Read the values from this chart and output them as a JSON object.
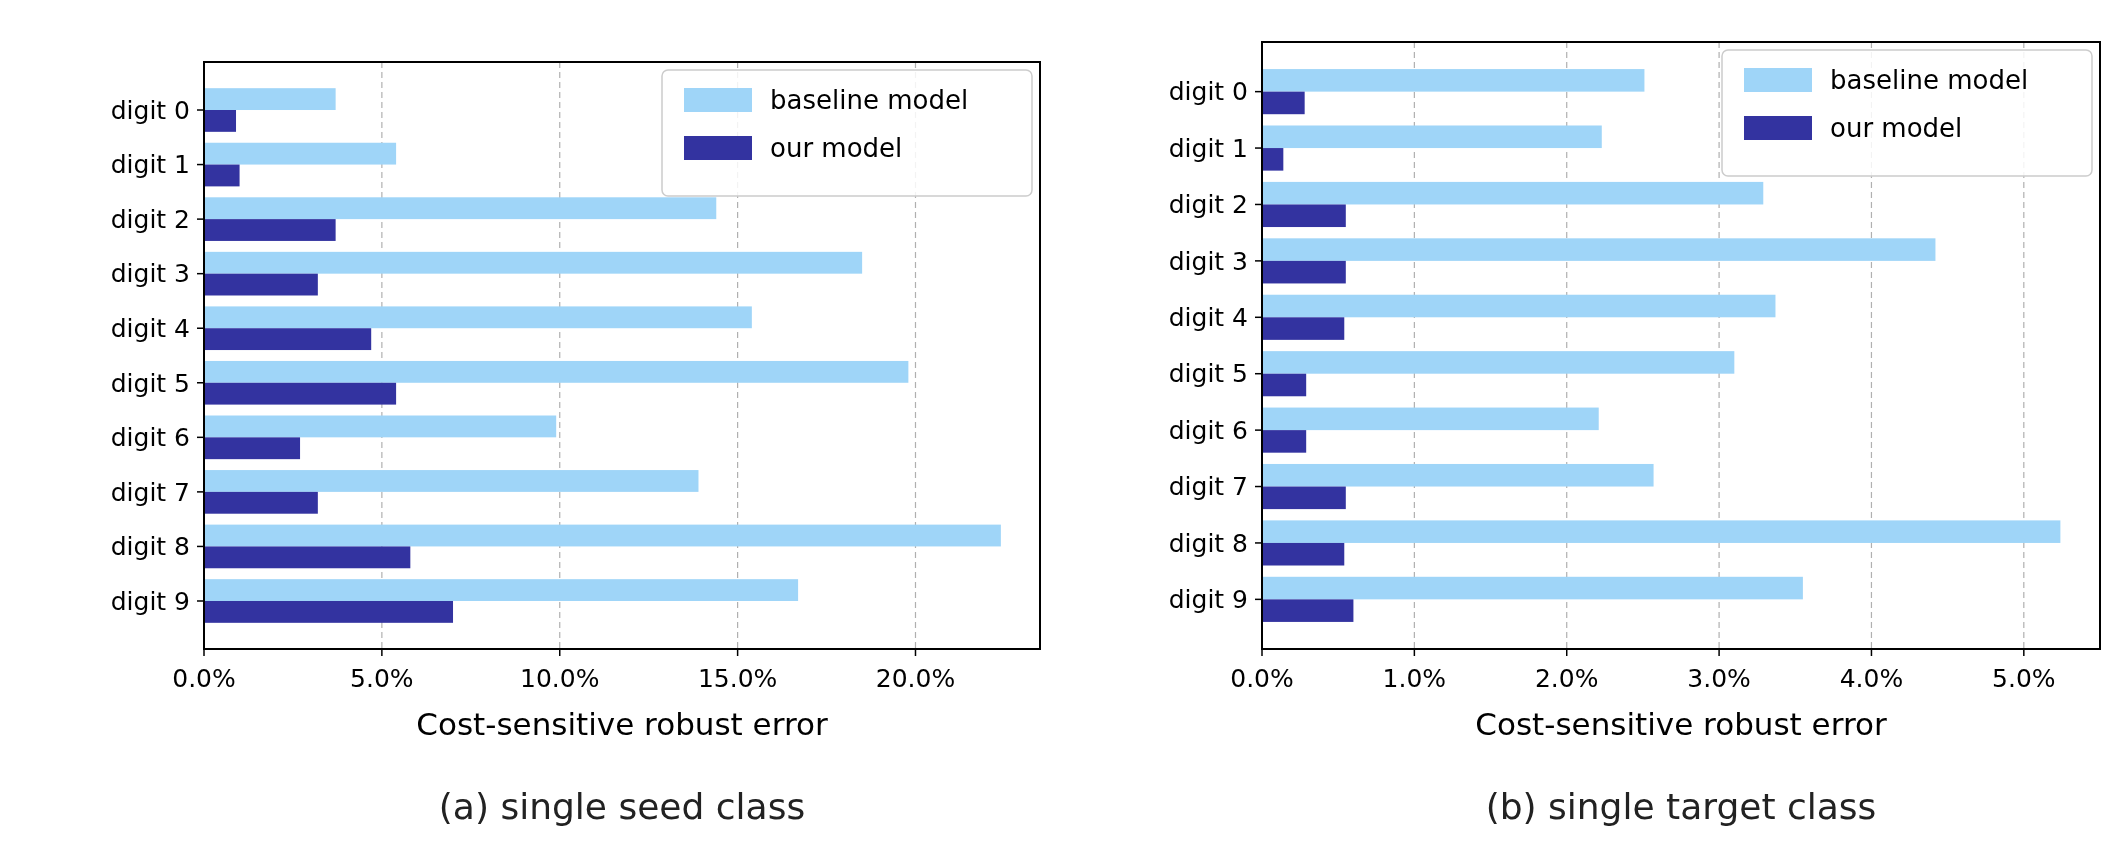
{
  "chart_data": [
    {
      "type": "bar",
      "orientation": "horizontal",
      "categories": [
        "digit 0",
        "digit 1",
        "digit 2",
        "digit 3",
        "digit 4",
        "digit 5",
        "digit 6",
        "digit 7",
        "digit 8",
        "digit 9"
      ],
      "series": [
        {
          "name": "baseline model",
          "color": "#9fd5f8",
          "values": [
            3.7,
            5.4,
            14.4,
            18.5,
            15.4,
            19.8,
            9.9,
            13.9,
            22.4,
            16.7
          ]
        },
        {
          "name": "our model",
          "color": "#3333a0",
          "values": [
            0.9,
            1.0,
            3.7,
            3.2,
            4.7,
            5.4,
            2.7,
            3.2,
            5.8,
            7.0
          ]
        }
      ],
      "xlim": [
        0,
        23.5
      ],
      "xticks": [
        {
          "value": 0,
          "label": "0.0%"
        },
        {
          "value": 5,
          "label": "5.0%"
        },
        {
          "value": 10,
          "label": "10.0%"
        },
        {
          "value": 15,
          "label": "15.0%"
        },
        {
          "value": 20,
          "label": "20.0%"
        }
      ],
      "xlabel": "Cost-sensitive robust error",
      "annotations": [
        "(a) single seed class"
      ],
      "grid": "x",
      "legend": "top right"
    },
    {
      "type": "bar",
      "orientation": "horizontal",
      "categories": [
        "digit 0",
        "digit 1",
        "digit 2",
        "digit 3",
        "digit 4",
        "digit 5",
        "digit 6",
        "digit 7",
        "digit 8",
        "digit 9"
      ],
      "series": [
        {
          "name": "baseline model",
          "color": "#9fd5f8",
          "values": [
            2.51,
            2.23,
            3.29,
            4.42,
            3.37,
            3.1,
            2.21,
            2.57,
            5.24,
            3.55
          ]
        },
        {
          "name": "our model",
          "color": "#3333a0",
          "values": [
            0.28,
            0.14,
            0.55,
            0.55,
            0.54,
            0.29,
            0.29,
            0.55,
            0.54,
            0.6
          ]
        }
      ],
      "xlim": [
        0,
        5.5
      ],
      "xticks": [
        {
          "value": 0,
          "label": "0.0%"
        },
        {
          "value": 1,
          "label": "1.0%"
        },
        {
          "value": 2,
          "label": "2.0%"
        },
        {
          "value": 3,
          "label": "3.0%"
        },
        {
          "value": 4,
          "label": "4.0%"
        },
        {
          "value": 5,
          "label": "5.0%"
        }
      ],
      "xlabel": "Cost-sensitive robust error",
      "annotations": [
        "(b) single target class"
      ],
      "grid": "x",
      "legend": "top right"
    }
  ]
}
